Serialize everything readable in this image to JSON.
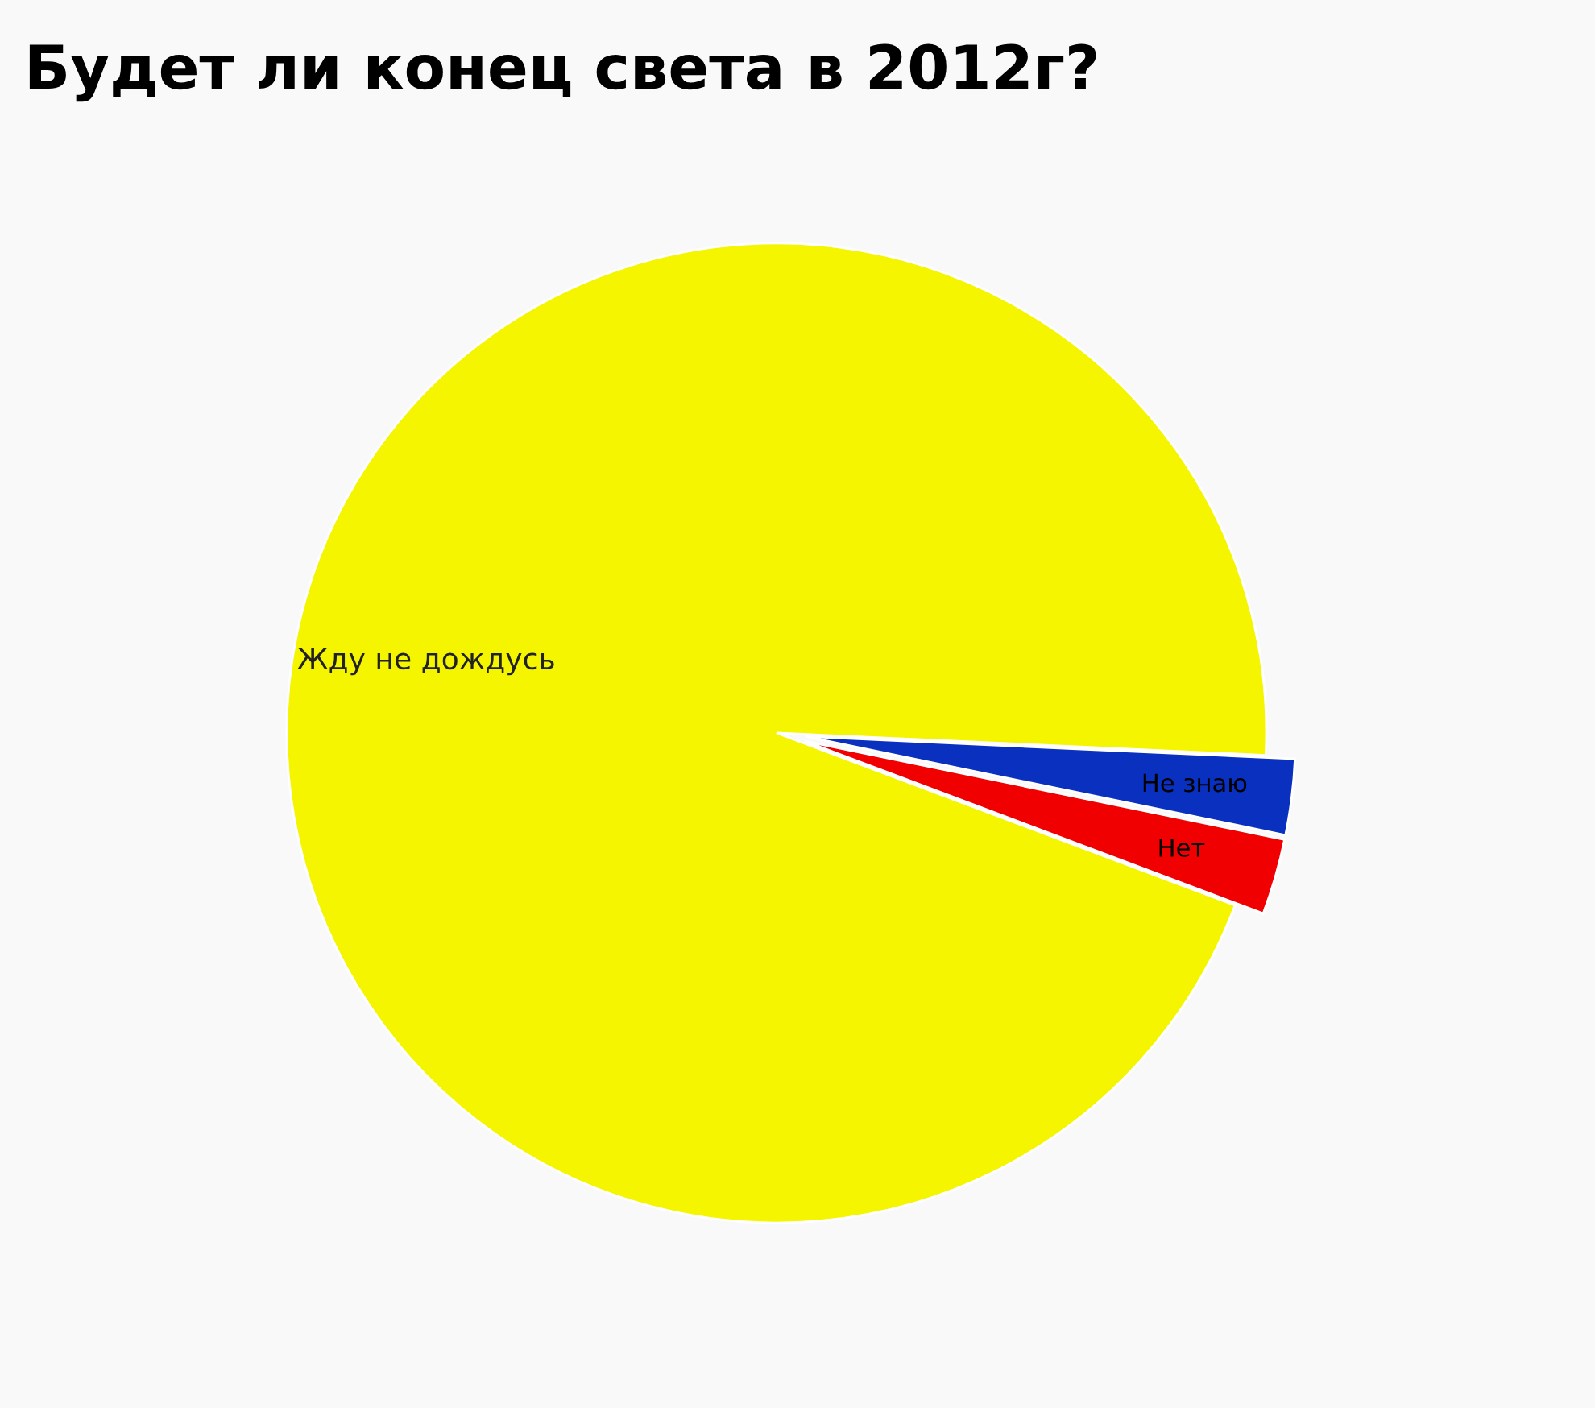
{
  "chart_data": {
    "type": "pie",
    "title": "Будет ли конец света в 2012г?",
    "categories": [
      "Жду не дождусь",
      "Не знаю",
      "Нет"
    ],
    "values": [
      95,
      2.5,
      2.5
    ],
    "colors": [
      "#f5f500",
      "#0a30c0",
      "#f00000"
    ]
  }
}
